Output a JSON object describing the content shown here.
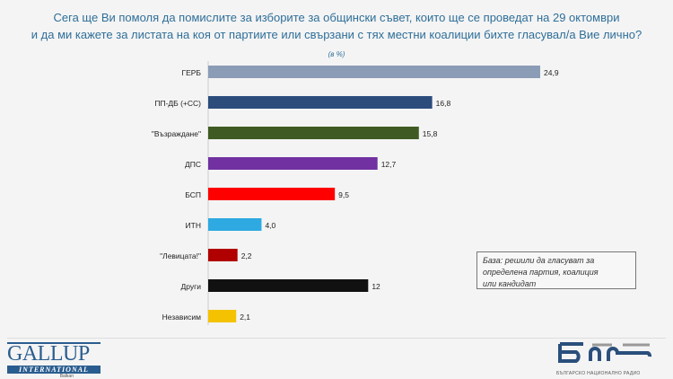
{
  "chart_data": {
    "type": "bar",
    "orientation": "horizontal",
    "title": "Сега ще Ви помоля да помислите за изборите за общински съвет, които ще се проведат на 29 октомври и да ми кажете за листата на коя от партиите или свързани с тях местни коалиции бихте гласувал/а Вие лично?",
    "title_lines": [
      "Сега ще Ви помоля да помислите за изборите за общински съвет, които ще се проведат на 29 октомври",
      "и да ми кажете за листата на коя от партиите или свързани с тях местни коалиции бихте гласувал/а Вие лично?"
    ],
    "unit": "(в %)",
    "categories": [
      "ГЕРБ",
      "ПП-ДБ (+СС)",
      "\"Възраждане\"",
      "ДПС",
      "БСП",
      "ИТН",
      "\"Левицата!\"",
      "Други",
      "Независим"
    ],
    "values": [
      24.9,
      16.8,
      15.8,
      12.7,
      9.5,
      4.0,
      2.2,
      12,
      2.1
    ],
    "value_labels": [
      "24,9",
      "16,8",
      "15,8",
      "12,7",
      "9,5",
      "4,0",
      "2,2",
      "12",
      "2,1"
    ],
    "colors": [
      "#8b9cb6",
      "#2c4c7c",
      "#3f5b23",
      "#7131a1",
      "#fe0000",
      "#2ea9e1",
      "#b00000",
      "#111111",
      "#f4c200"
    ],
    "xlim": [
      0,
      30
    ],
    "grid": false,
    "note": "База: решили да гласуват за определена партия, коалиция или кандидат",
    "note_lines": [
      "База: решили да гласуват за",
      "определена партия, коалиция",
      "или кандидат"
    ]
  },
  "footer": {
    "left_logo": [
      "GALLUP",
      "INTERNATIONAL",
      "Balkan"
    ],
    "right_logo": [
      "бнр",
      "БЪЛГАРСКО НАЦИОНАЛНО РАДИО"
    ]
  }
}
